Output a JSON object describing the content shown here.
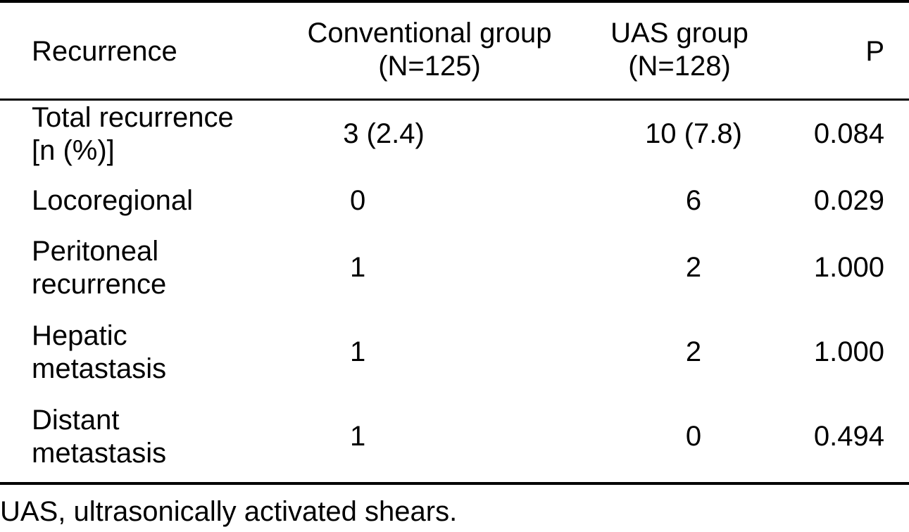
{
  "table": {
    "header": {
      "recurrence": "Recurrence",
      "conventional_line1": "Conventional group",
      "conventional_line2": "(N=125)",
      "uas_line1": "UAS group",
      "uas_line2": "(N=128)",
      "p": "P"
    },
    "rows": [
      {
        "label_line1": "Total recurrence",
        "label_line2": "[n (%)]",
        "conventional": "3 (2.4)",
        "uas": "10 (7.8)",
        "p": "0.084"
      },
      {
        "label_line1": "Locoregional",
        "label_line2": "",
        "conventional": "0",
        "uas": "6",
        "p": "0.029"
      },
      {
        "label_line1": "Peritoneal",
        "label_line2": "recurrence",
        "conventional": "1",
        "uas": "2",
        "p": "1.000"
      },
      {
        "label_line1": "Hepatic",
        "label_line2": "metastasis",
        "conventional": "1",
        "uas": "2",
        "p": "1.000"
      },
      {
        "label_line1": "Distant",
        "label_line2": "metastasis",
        "conventional": "1",
        "uas": "0",
        "p": "0.494"
      }
    ],
    "footnote": "UAS, ultrasonically activated shears."
  }
}
